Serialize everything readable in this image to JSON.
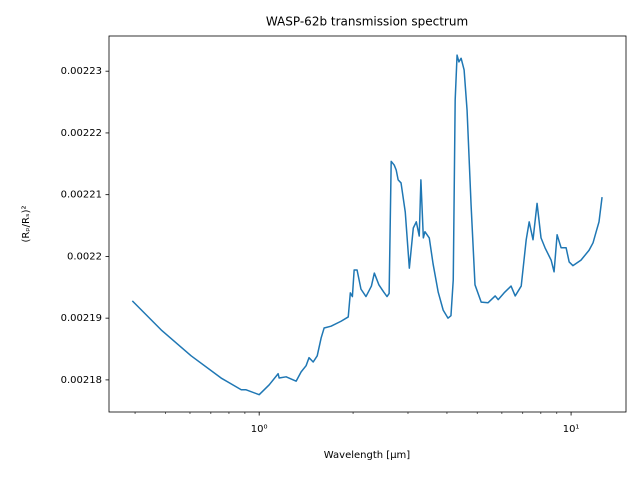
{
  "chart_data": {
    "type": "line",
    "title": "WASP-62b transmission spectrum",
    "x_label": "Wavelength [μm]",
    "y_label": "(Rₚ/Rₛ)²",
    "x_scale": "log",
    "xlim": [
      0.33,
      15.0
    ],
    "ylim": [
      0.0021748,
      0.0022357
    ],
    "xticks": [
      {
        "value": 1,
        "label": "10⁰"
      },
      {
        "value": 10,
        "label": "10¹"
      }
    ],
    "xminorticks": [
      0.4,
      0.5,
      0.6,
      0.7,
      0.8,
      0.9,
      2,
      3,
      4,
      5,
      6,
      7,
      8,
      9
    ],
    "yticks": [
      0.00218,
      0.00219,
      0.0022,
      0.00221,
      0.00222,
      0.00223
    ],
    "grid": false,
    "series": [
      {
        "color": "#1f77b4",
        "x": [
          0.392,
          0.485,
          0.605,
          0.755,
          0.876,
          0.908,
          1.0,
          1.077,
          1.15,
          1.159,
          1.22,
          1.314,
          1.363,
          1.414,
          1.445,
          1.49,
          1.535,
          1.58,
          1.615,
          1.7,
          1.83,
          1.93,
          1.96,
          1.99,
          2.016,
          2.06,
          2.12,
          2.2,
          2.29,
          2.34,
          2.42,
          2.51,
          2.57,
          2.61,
          2.65,
          2.71,
          2.75,
          2.79,
          2.85,
          2.94,
          3.03,
          3.12,
          3.19,
          3.26,
          3.3,
          3.36,
          3.4,
          3.51,
          3.61,
          3.75,
          3.89,
          4.03,
          4.12,
          4.19,
          4.25,
          4.31,
          4.37,
          4.44,
          4.54,
          4.64,
          4.78,
          4.92,
          5.15,
          5.42,
          5.71,
          5.84,
          6.1,
          6.42,
          6.62,
          6.92,
          7.18,
          7.34,
          7.55,
          7.78,
          8.01,
          8.25,
          8.63,
          8.82,
          9.02,
          9.29,
          9.64,
          9.86,
          10.14,
          10.76,
          11.42,
          11.76,
          12.02,
          12.29,
          12.57
        ],
        "values": [
          0.0021928,
          0.0021881,
          0.0021839,
          0.0021803,
          0.0021784,
          0.0021784,
          0.0021776,
          0.0021792,
          0.002181,
          0.0021803,
          0.0021805,
          0.0021798,
          0.0021813,
          0.0021823,
          0.0021836,
          0.0021829,
          0.0021839,
          0.0021868,
          0.0021884,
          0.0021887,
          0.0021895,
          0.0021902,
          0.0021941,
          0.0021935,
          0.0021978,
          0.0021978,
          0.0021947,
          0.0021935,
          0.0021952,
          0.0021973,
          0.0021954,
          0.0021942,
          0.0021935,
          0.002194,
          0.0022154,
          0.0022148,
          0.002214,
          0.0022124,
          0.0022119,
          0.0022072,
          0.0021981,
          0.0022046,
          0.0022056,
          0.0022033,
          0.0022124,
          0.002203,
          0.002204,
          0.002203,
          0.0021988,
          0.0021942,
          0.0021913,
          0.00219,
          0.0021904,
          0.0021962,
          0.0022253,
          0.0022326,
          0.0022315,
          0.0022321,
          0.0022302,
          0.0022237,
          0.0022083,
          0.0021954,
          0.0021926,
          0.0021925,
          0.0021936,
          0.002193,
          0.0021941,
          0.0021952,
          0.0021936,
          0.0021952,
          0.0022027,
          0.0022056,
          0.0022027,
          0.0022086,
          0.002203,
          0.0022014,
          0.0021994,
          0.0021975,
          0.0022035,
          0.0022014,
          0.0022014,
          0.0021991,
          0.0021985,
          0.0021994,
          0.002201,
          0.0022022,
          0.0022039,
          0.0022056,
          0.0022096
        ]
      }
    ]
  }
}
